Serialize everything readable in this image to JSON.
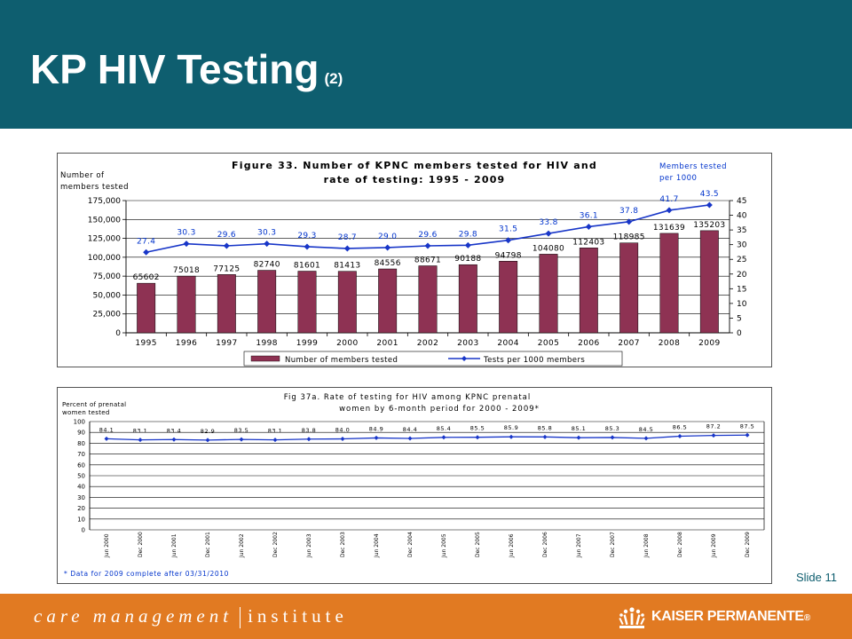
{
  "slide": {
    "title": "KP HIV Testing",
    "title_suffix": "(2)",
    "slide_number": "Slide 11",
    "footer_left_a": "care management",
    "footer_left_b": "institute",
    "footer_brand": "KAISER PERMANENTE",
    "footer_brand_mark": "®"
  },
  "colors": {
    "header": "#0e5e6f",
    "footer": "#e17a22",
    "bar": "#8e3253",
    "line": "#1836c8",
    "rate_label": "#0033cc"
  },
  "chart_data": [
    {
      "type": "bar",
      "title_line1": "Figure 33.  Number of KPNC members tested for HIV and",
      "title_line2": "rate of testing: 1995 - 2009",
      "ylabel_line1": "Number of",
      "ylabel_line2": "members tested",
      "y2label_line1": "Members tested",
      "y2label_line2": "per 1000",
      "categories": [
        "1995",
        "1996",
        "1997",
        "1998",
        "1999",
        "2000",
        "2001",
        "2002",
        "2003",
        "2004",
        "2005",
        "2006",
        "2007",
        "2008",
        "2009"
      ],
      "ylim": [
        0,
        175000
      ],
      "yticks": [
        0,
        25000,
        50000,
        75000,
        100000,
        125000,
        150000,
        175000
      ],
      "ytick_labels": [
        "0",
        "25,000",
        "50,000",
        "75,000",
        "100,000",
        "125,000",
        "150,000",
        "175,000"
      ],
      "y2lim": [
        0,
        45
      ],
      "y2ticks": [
        0,
        5,
        10,
        15,
        20,
        25,
        30,
        35,
        40,
        45
      ],
      "series": [
        {
          "name": "Number of members tested",
          "kind": "bar",
          "values": [
            65602,
            75018,
            77125,
            82740,
            81601,
            81413,
            84556,
            88671,
            90188,
            94798,
            104080,
            112403,
            118985,
            131639,
            135203
          ],
          "labels": [
            "65602",
            "75018",
            "77125",
            "82740",
            "81601",
            "81413",
            "84556",
            "88671",
            "90188",
            "94798",
            "104080",
            "112403",
            "118985",
            "131639",
            "135203"
          ]
        },
        {
          "name": "Tests per 1000 members",
          "kind": "line",
          "axis": "right",
          "values": [
            27.4,
            30.3,
            29.6,
            30.3,
            29.3,
            28.7,
            29.0,
            29.6,
            29.8,
            31.5,
            33.8,
            36.1,
            37.8,
            41.7,
            43.5
          ],
          "labels": [
            "27.4",
            "30.3",
            "29.6",
            "30.3",
            "29.3",
            "28.7",
            "29.0",
            "29.6",
            "29.8",
            "31.5",
            "33.8",
            "36.1",
            "37.8",
            "41.7",
            "43.5"
          ]
        }
      ],
      "legend": "bottom",
      "grid": true
    },
    {
      "type": "line",
      "title_line1": "Fig 37a. Rate of testing for HIV among KPNC prenatal",
      "title_line2": "women by 6-month period for 2000 - 2009*",
      "ylabel_line1": "Percent of prenatal",
      "ylabel_line2": "women tested",
      "footnote": "* Data for 2009 complete after 03/31/2010",
      "categories": [
        "Jun 2000",
        "Dec 2000",
        "Jun 2001",
        "Dec 2001",
        "Jun 2002",
        "Dec 2002",
        "Jun 2003",
        "Dec 2003",
        "Jun 2004",
        "Dec 2004",
        "Jun 2005",
        "Dec 2005",
        "Jun 2006",
        "Dec 2006",
        "Jun 2007",
        "Dec 2007",
        "Jun 2008",
        "Dec 2008",
        "Jun 2009",
        "Dec 2009"
      ],
      "ylim": [
        0,
        100
      ],
      "yticks": [
        0,
        10,
        20,
        30,
        40,
        50,
        60,
        70,
        80,
        90,
        100
      ],
      "series": [
        {
          "name": "",
          "values": [
            84.1,
            83.1,
            83.4,
            82.9,
            83.5,
            83.1,
            83.8,
            84.0,
            84.9,
            84.4,
            85.4,
            85.5,
            85.9,
            85.8,
            85.1,
            85.3,
            84.5,
            86.5,
            87.2,
            87.5
          ],
          "labels": [
            "84.1",
            "83.1",
            "83.4",
            "82.9",
            "83.5",
            "83.1",
            "83.8",
            "84.0",
            "84.9",
            "84.4",
            "85.4",
            "85.5",
            "85.9",
            "85.8",
            "85.1",
            "85.3",
            "84.5",
            "86.5",
            "87.2",
            "87.5"
          ]
        }
      ],
      "grid": true
    }
  ]
}
